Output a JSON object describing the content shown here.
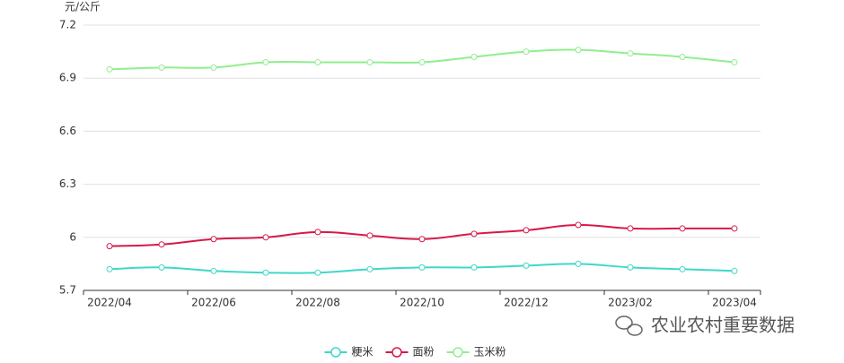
{
  "chart_data": {
    "type": "line",
    "y_axis_label": "元/公斤",
    "categories": [
      "2022/04",
      null,
      "2022/06",
      null,
      "2022/08",
      null,
      "2022/10",
      null,
      "2022/12",
      null,
      "2023/02",
      null,
      "2023/04"
    ],
    "series": [
      {
        "name": "粳米",
        "color": "#3fd8c8",
        "values": [
          5.82,
          5.83,
          5.81,
          5.8,
          5.8,
          5.82,
          5.83,
          5.83,
          5.84,
          5.85,
          5.83,
          5.82,
          5.81
        ]
      },
      {
        "name": "面粉",
        "color": "#d6194a",
        "values": [
          5.95,
          5.96,
          5.99,
          6.0,
          6.03,
          6.01,
          5.99,
          6.02,
          6.04,
          6.07,
          6.05,
          6.05,
          6.05
        ]
      },
      {
        "name": "玉米粉",
        "color": "#90ee90",
        "values": [
          6.95,
          6.96,
          6.96,
          6.99,
          6.99,
          6.99,
          6.99,
          7.02,
          7.05,
          7.06,
          7.04,
          7.02,
          6.99
        ]
      }
    ],
    "ylim": [
      5.7,
      7.2
    ],
    "yticks": [
      5.7,
      6,
      6.3,
      6.6,
      6.9,
      7.2
    ],
    "grid": true,
    "legend": "bottom",
    "watermark": "农业农村重要数据"
  }
}
